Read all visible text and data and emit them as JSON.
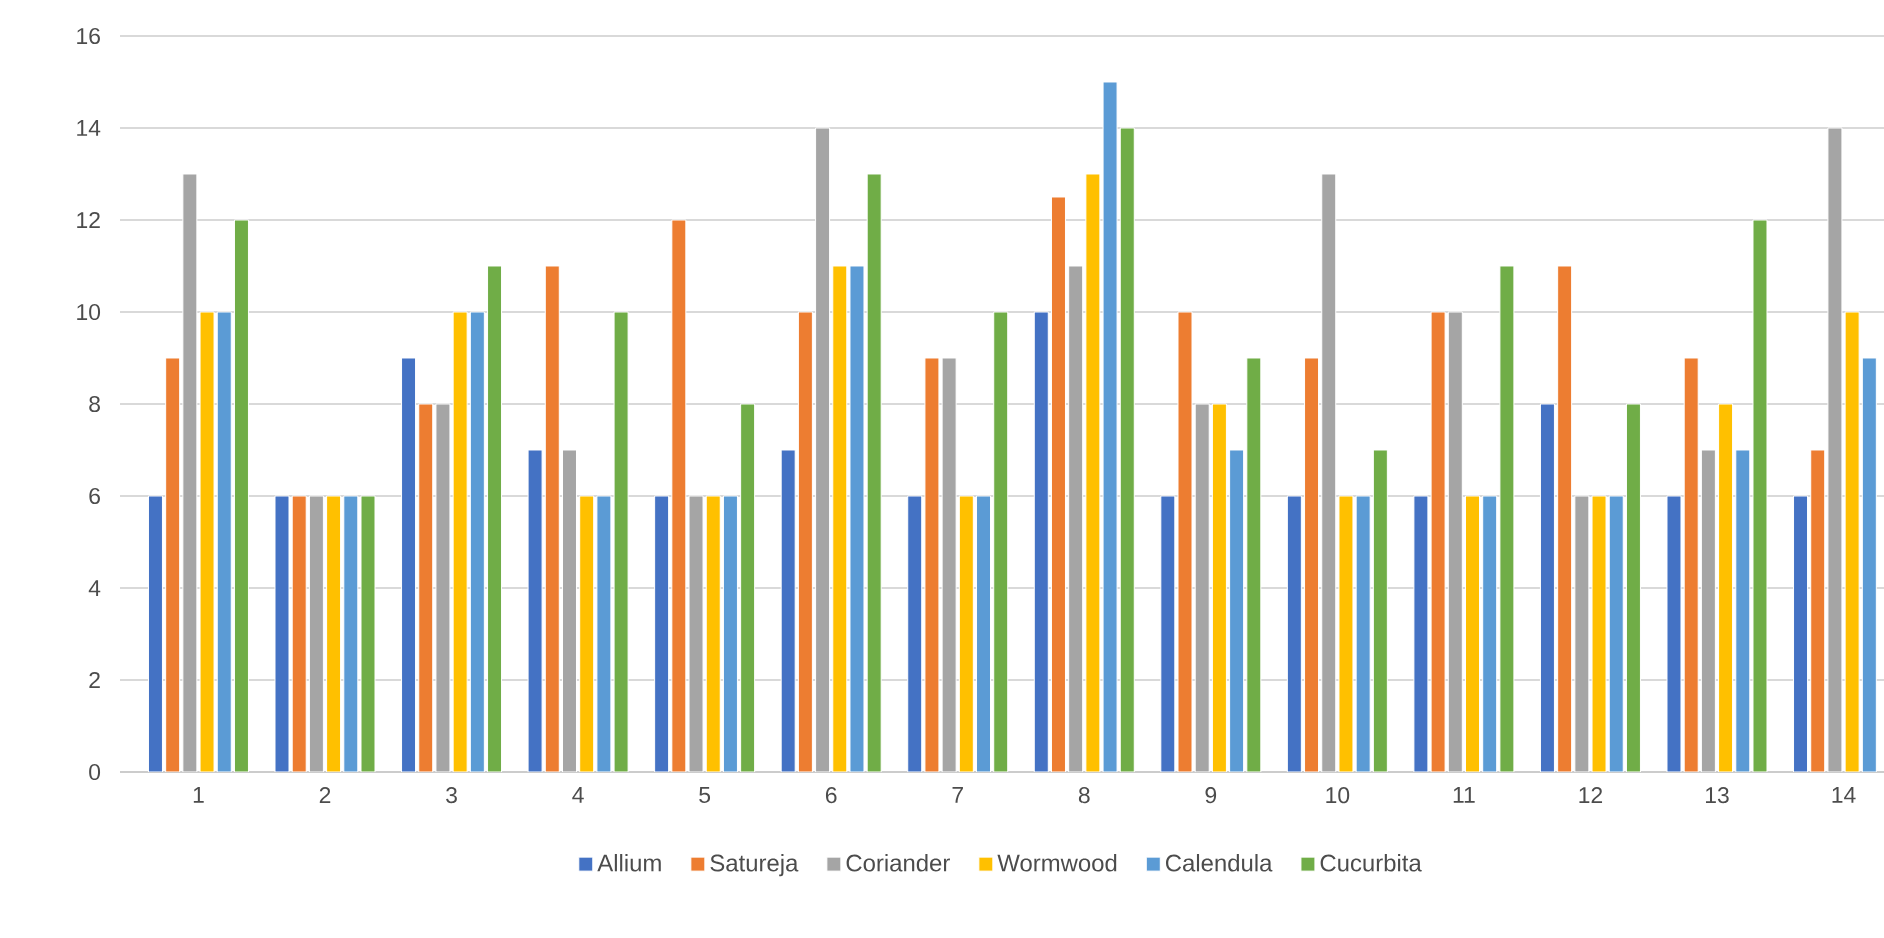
{
  "chart_data": {
    "type": "bar",
    "categories": [
      "1",
      "2",
      "3",
      "4",
      "5",
      "6",
      "7",
      "8",
      "9",
      "10",
      "11",
      "12",
      "13",
      "14"
    ],
    "series": [
      {
        "name": "Allium",
        "color": "#4472c4",
        "values": [
          6,
          6,
          9,
          7,
          6,
          7,
          6,
          10,
          6,
          6,
          6,
          8,
          6,
          6
        ]
      },
      {
        "name": "Satureja",
        "color": "#ed7d31",
        "values": [
          9,
          6,
          8,
          11,
          12,
          10,
          9,
          12.5,
          10,
          9,
          10,
          11,
          9,
          7
        ]
      },
      {
        "name": "Coriander",
        "color": "#a5a5a5",
        "values": [
          13,
          6,
          8,
          7,
          6,
          14,
          9,
          11,
          8,
          13,
          10,
          6,
          7,
          14
        ]
      },
      {
        "name": "Wormwood",
        "color": "#ffc000",
        "values": [
          10,
          6,
          10,
          6,
          6,
          11,
          6,
          13,
          8,
          6,
          6,
          6,
          8,
          10
        ]
      },
      {
        "name": "Calendula",
        "color": "#5b9bd5",
        "values": [
          10,
          6,
          10,
          6,
          6,
          11,
          6,
          15,
          7,
          6,
          6,
          6,
          7,
          9
        ]
      },
      {
        "name": "Cucurbita",
        "color": "#70ad47",
        "values": [
          12,
          6,
          11,
          10,
          8,
          13,
          10,
          14,
          9,
          7,
          11,
          8,
          12,
          null
        ]
      }
    ],
    "ylim": [
      0,
      16
    ],
    "yticks": [
      0,
      2,
      4,
      6,
      8,
      10,
      12,
      14,
      16
    ],
    "grid": "y",
    "legend": "bottom"
  }
}
